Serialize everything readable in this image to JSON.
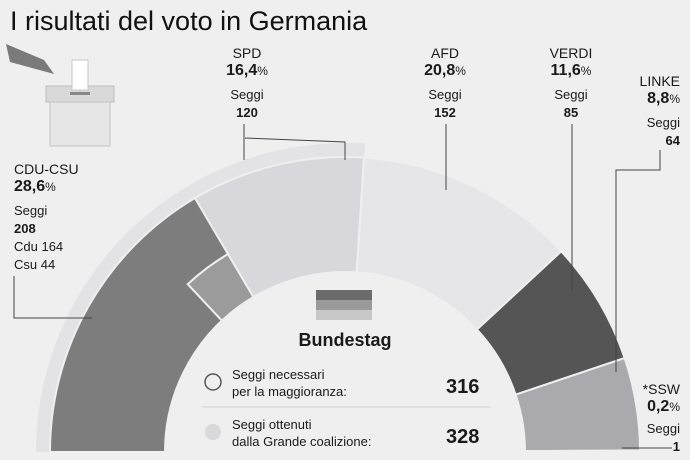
{
  "title": "I risultati del voto in Germania",
  "seats_label": "Seggi",
  "percent_unit": "%",
  "chart_data": {
    "type": "pie",
    "subtype": "parliament-half-donut",
    "title": "I risultati del voto in Germania",
    "center_label": "Bundestag",
    "series": [
      {
        "name": "CDU-CSU",
        "percent": "28,6",
        "seats": 208,
        "breakdown": [
          "Cdu 164",
          "Csu 44"
        ],
        "color": "#7d7d7d"
      },
      {
        "name": "SPD",
        "percent": "16,4",
        "seats": 120,
        "color": "#d8d8dc"
      },
      {
        "name": "AFD",
        "percent": "20,8",
        "seats": 152,
        "color": "#e6e6e8"
      },
      {
        "name": "VERDI",
        "percent": "11,6",
        "seats": 85,
        "color": "#555555"
      },
      {
        "name": "LINKE",
        "percent": "8,8",
        "seats": 64,
        "color": "#a9a9ae"
      },
      {
        "name": "*SSW",
        "percent": "0,2",
        "seats": 1,
        "color": "#3a3a3a"
      }
    ],
    "majority_needed_label": [
      "Seggi necessari",
      "per la maggioranza:"
    ],
    "majority_needed": 316,
    "coalition_label": [
      "Seggi ottenuti",
      "dalla Grande coalizione:"
    ],
    "coalition_seats": 328
  }
}
